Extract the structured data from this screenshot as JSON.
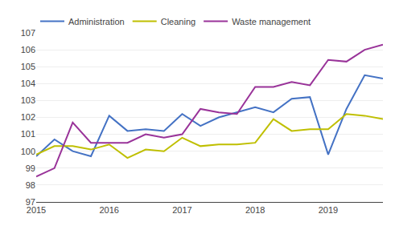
{
  "chart_data": {
    "type": "line",
    "categories": [
      "2015",
      null,
      null,
      null,
      "2016",
      null,
      null,
      null,
      "2017",
      null,
      null,
      null,
      "2018",
      null,
      null,
      null,
      "2019",
      null,
      null,
      null
    ],
    "series": [
      {
        "name": "Administration",
        "color": "#4472C4",
        "values": [
          99.7,
          100.7,
          100.0,
          99.7,
          102.1,
          101.2,
          101.3,
          101.2,
          102.2,
          101.5,
          102.0,
          102.3,
          102.6,
          102.3,
          103.1,
          103.2,
          99.8,
          102.5,
          104.5,
          104.3
        ]
      },
      {
        "name": "Cleaning",
        "color": "#BFBF00",
        "values": [
          99.8,
          100.3,
          100.3,
          100.1,
          100.4,
          99.6,
          100.1,
          100.0,
          100.8,
          100.3,
          100.4,
          100.4,
          100.5,
          101.9,
          101.2,
          101.3,
          101.3,
          102.2,
          102.1,
          101.9
        ]
      },
      {
        "name": "Waste management",
        "color": "#993399",
        "values": [
          98.5,
          99.0,
          101.7,
          100.5,
          100.5,
          100.5,
          101.0,
          100.8,
          101.0,
          102.5,
          102.3,
          102.2,
          103.8,
          103.8,
          104.1,
          103.9,
          105.4,
          105.3,
          106.0,
          106.3
        ]
      }
    ],
    "ylim": [
      97,
      107
    ],
    "yticks": [
      97,
      98,
      99,
      100,
      101,
      102,
      103,
      104,
      105,
      106,
      107
    ],
    "grid": true,
    "legend": "upper left"
  }
}
